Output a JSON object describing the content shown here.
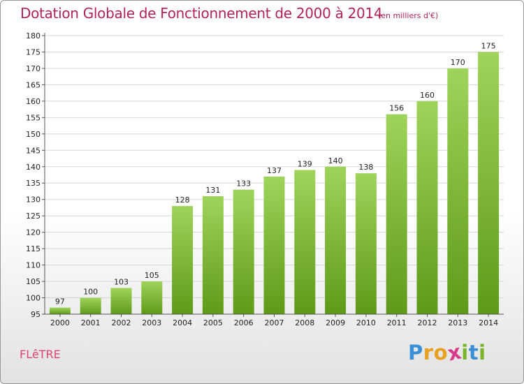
{
  "title": "Dotation Globale de Fonctionnement de 2000 à 2014",
  "subtitle": "(en milliers d'€)",
  "commune": "FLêTRE",
  "logo": {
    "text": "Proxiti",
    "letters": [
      "P",
      "r",
      "o",
      "x",
      "i",
      "t",
      "i"
    ],
    "colors": [
      "#3a8fd6",
      "#e8a020",
      "#e8a020",
      "#d83a8a",
      "#7ab42a",
      "#3a8fd6",
      "#7ab42a"
    ]
  },
  "colors": {
    "title": "#b0235a",
    "bar_top": "#9fd45a",
    "bar_bottom": "#5e9a18",
    "grid": "#d5d5d5",
    "axis": "#555555"
  },
  "chart_data": {
    "type": "bar",
    "categories": [
      "2000",
      "2001",
      "2002",
      "2003",
      "2004",
      "2005",
      "2006",
      "2007",
      "2008",
      "2009",
      "2010",
      "2011",
      "2012",
      "2013",
      "2014"
    ],
    "values": [
      97,
      100,
      103,
      105,
      128,
      131,
      133,
      137,
      139,
      140,
      138,
      156,
      160,
      170,
      175
    ],
    "ylim": [
      95,
      180
    ],
    "yticks": [
      95,
      100,
      105,
      110,
      115,
      120,
      125,
      130,
      135,
      140,
      145,
      150,
      155,
      160,
      165,
      170,
      175,
      180
    ],
    "grid": true
  }
}
